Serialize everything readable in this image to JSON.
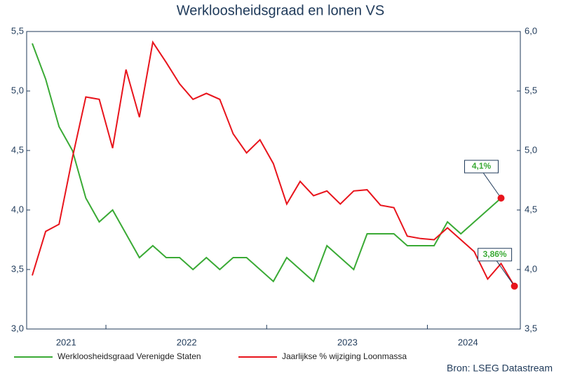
{
  "chart_data": {
    "type": "line",
    "title": "Werkloosheidsgraad en lonen VS",
    "source": "Bron: LSEG Datastream",
    "categories": [
      null,
      null,
      null,
      "2021",
      null,
      null,
      null,
      null,
      null,
      null,
      null,
      null,
      "2022",
      null,
      null,
      null,
      null,
      null,
      null,
      null,
      null,
      null,
      null,
      null,
      "2023",
      null,
      null,
      null,
      null,
      null,
      null,
      null,
      null,
      "2024",
      null,
      null,
      null
    ],
    "series": [
      {
        "name": "Werkloosheidsgraad Verenigde Staten",
        "color": "#3aaa35",
        "axis": "y",
        "values": [
          5.4,
          5.1,
          4.7,
          4.5,
          4.1,
          3.9,
          4.0,
          3.8,
          3.6,
          3.7,
          3.6,
          3.6,
          3.5,
          3.6,
          3.5,
          3.6,
          3.6,
          3.5,
          3.4,
          3.6,
          3.5,
          3.4,
          3.7,
          3.6,
          3.5,
          3.8,
          3.8,
          3.8,
          3.7,
          3.7,
          3.7,
          3.9,
          3.8,
          3.9,
          4.0,
          4.1,
          null
        ]
      },
      {
        "name": "Jaarlijkse % wijziging Loonmassa",
        "color": "#e8141c",
        "axis": "y2",
        "values": [
          3.95,
          4.32,
          4.38,
          4.94,
          5.45,
          5.43,
          5.02,
          5.68,
          5.28,
          5.91,
          5.74,
          5.56,
          5.43,
          5.48,
          5.43,
          5.14,
          4.98,
          5.09,
          4.89,
          4.55,
          4.74,
          4.62,
          4.66,
          4.55,
          4.66,
          4.67,
          4.54,
          4.52,
          4.28,
          4.26,
          4.25,
          4.35,
          4.25,
          4.15,
          3.92,
          4.05,
          3.86
        ]
      }
    ],
    "annotations": [
      {
        "series": 0,
        "index": 35,
        "value": 4.1,
        "label": "4,1%"
      },
      {
        "series": 1,
        "index": 36,
        "value": 3.86,
        "label": "3,86%"
      }
    ],
    "ylim": [
      3.0,
      5.5
    ],
    "yticks": [
      {
        "value": 3.0,
        "label": "3,0"
      },
      {
        "value": 3.5,
        "label": "3,5"
      },
      {
        "value": 4.0,
        "label": "4,0"
      },
      {
        "value": 4.5,
        "label": "4,5"
      },
      {
        "value": 5.0,
        "label": "5,0"
      },
      {
        "value": 5.5,
        "label": "5,5"
      }
    ],
    "y2lim": [
      3.5,
      6.0
    ],
    "y2ticks": [
      {
        "value": 3.5,
        "label": "3,5"
      },
      {
        "value": 4.0,
        "label": "4,0"
      },
      {
        "value": 4.5,
        "label": "4,5"
      },
      {
        "value": 5.0,
        "label": "5,0"
      },
      {
        "value": 5.5,
        "label": "5,5"
      },
      {
        "value": 6.0,
        "label": "6,0"
      }
    ],
    "grid": false
  }
}
